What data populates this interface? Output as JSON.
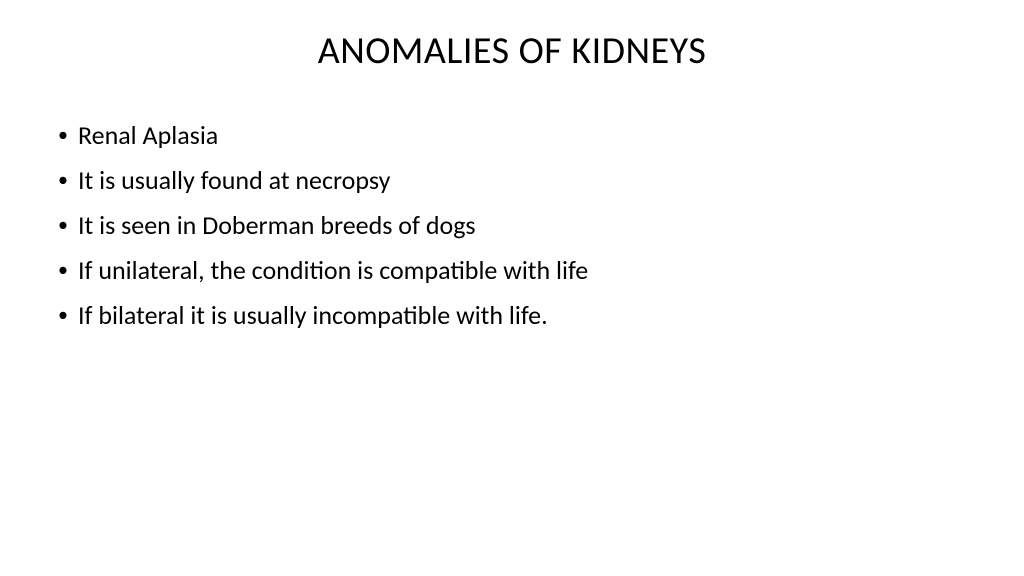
{
  "slide": {
    "title": "ANOMALIES OF KIDNEYS",
    "bullets": [
      "Renal Aplasia",
      "It is usually found at necropsy",
      "It is seen in Doberman breeds of dogs",
      "If unilateral, the condition is compatible with life",
      "If bilateral it is usually incompatible with life."
    ]
  },
  "style": {
    "background_color": "#ffffff",
    "text_color": "#000000",
    "title_fontsize": 38,
    "body_fontsize": 26,
    "font_family": "Calibri"
  }
}
